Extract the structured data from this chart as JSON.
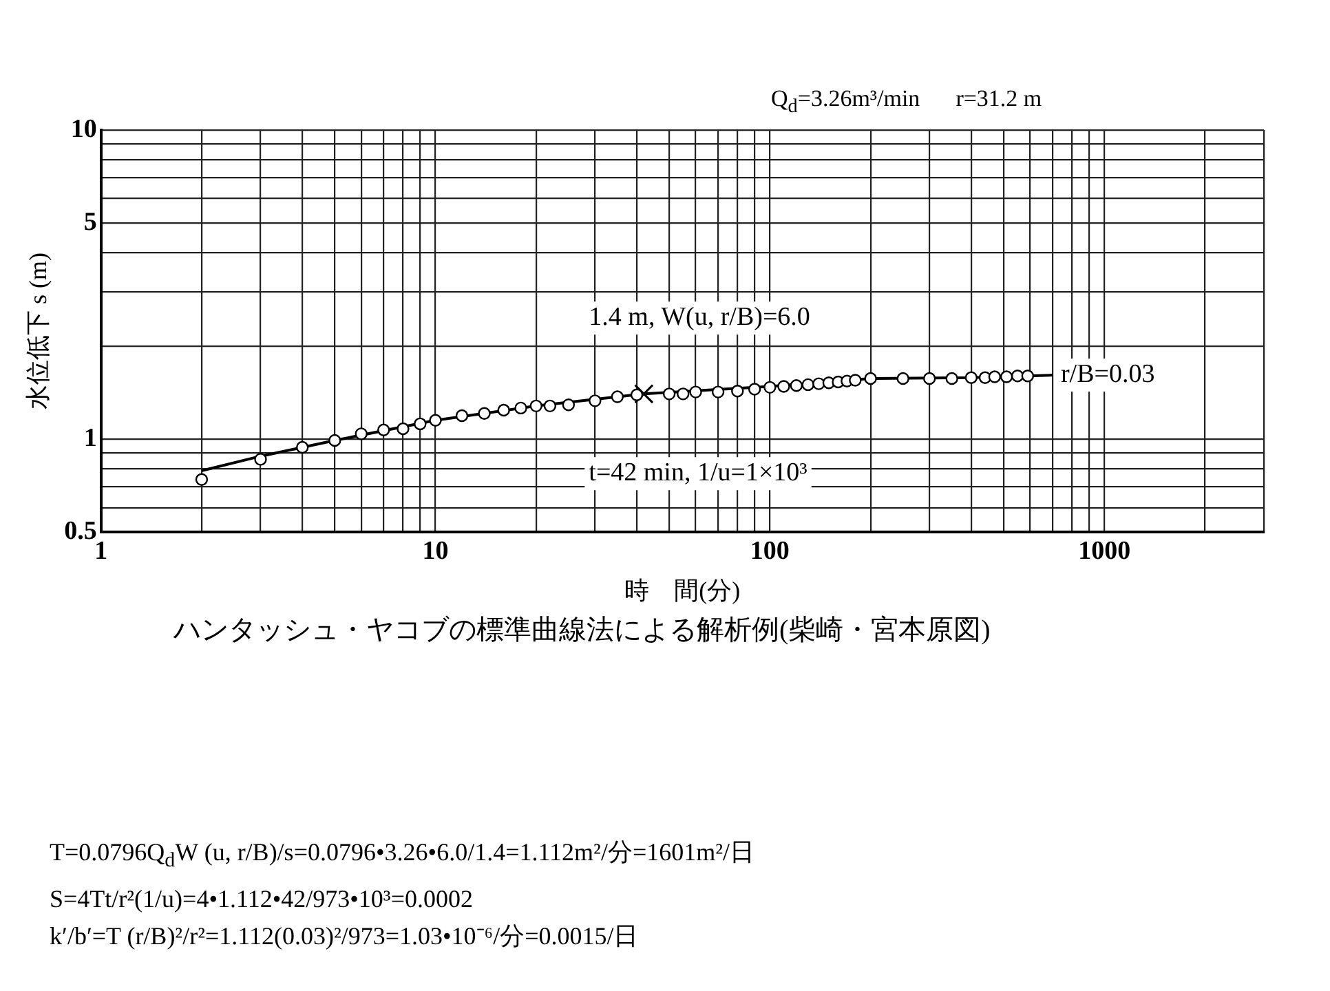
{
  "chart_data": {
    "type": "scatter",
    "xlabel": "時　間(分)",
    "ylabel": "水位低下 s (m)",
    "log": "xy",
    "grid": true,
    "legend": false,
    "marker": "circle",
    "xlim": [
      1,
      3000
    ],
    "ylim": [
      0.5,
      10
    ],
    "xticks": [
      1,
      {
        "value": 2,
        "label": null
      },
      {
        "value": 3,
        "label": null
      },
      {
        "value": 4,
        "label": null
      },
      {
        "value": 5,
        "label": null
      },
      {
        "value": 6,
        "label": null
      },
      {
        "value": 7,
        "label": null
      },
      {
        "value": 8,
        "label": null
      },
      {
        "value": 9,
        "label": null
      },
      10,
      {
        "value": 20,
        "label": null
      },
      {
        "value": 30,
        "label": null
      },
      {
        "value": 40,
        "label": null
      },
      {
        "value": 50,
        "label": null
      },
      {
        "value": 60,
        "label": null
      },
      {
        "value": 70,
        "label": null
      },
      {
        "value": 80,
        "label": null
      },
      {
        "value": 90,
        "label": null
      },
      100,
      {
        "value": 200,
        "label": null
      },
      {
        "value": 300,
        "label": null
      },
      {
        "value": 400,
        "label": null
      },
      {
        "value": 500,
        "label": null
      },
      {
        "value": 600,
        "label": null
      },
      {
        "value": 700,
        "label": null
      },
      {
        "value": 800,
        "label": null
      },
      {
        "value": 900,
        "label": null
      },
      1000,
      {
        "value": 2000,
        "label": null
      },
      {
        "value": 3000,
        "label": null
      }
    ],
    "yticks": [
      0.5,
      {
        "value": 0.6,
        "label": null
      },
      {
        "value": 0.7,
        "label": null
      },
      {
        "value": 0.8,
        "label": null
      },
      {
        "value": 0.9,
        "label": null
      },
      1,
      {
        "value": 2,
        "label": null
      },
      {
        "value": 3,
        "label": null
      },
      {
        "value": 4,
        "label": null
      },
      5,
      {
        "value": 6,
        "label": null
      },
      {
        "value": 7,
        "label": null
      },
      {
        "value": 8,
        "label": null
      },
      {
        "value": 9,
        "label": null
      },
      10
    ],
    "series": [
      {
        "type": "line",
        "name": "r/B=0.03",
        "color": "#000000",
        "marker": "none",
        "x": [
          2,
          3,
          5,
          10,
          20,
          42,
          100,
          200,
          400,
          700
        ],
        "values": [
          0.79,
          0.88,
          0.99,
          1.15,
          1.28,
          1.4,
          1.48,
          1.57,
          1.58,
          1.61
        ]
      },
      {
        "color": "#000000",
        "x": [
          2,
          3,
          4,
          5,
          6,
          7,
          8,
          9,
          10,
          12,
          14,
          16,
          18,
          20,
          22,
          25,
          30,
          35,
          40,
          50,
          55,
          60,
          70,
          80,
          90,
          100,
          110,
          120,
          130,
          140,
          150,
          160,
          170,
          180,
          200,
          250,
          300,
          350,
          400,
          440,
          470,
          510,
          550,
          590
        ],
        "values": [
          0.74,
          0.86,
          0.94,
          0.99,
          1.04,
          1.07,
          1.08,
          1.12,
          1.15,
          1.19,
          1.21,
          1.24,
          1.26,
          1.28,
          1.28,
          1.29,
          1.33,
          1.37,
          1.39,
          1.4,
          1.4,
          1.42,
          1.42,
          1.43,
          1.45,
          1.47,
          1.48,
          1.49,
          1.5,
          1.51,
          1.52,
          1.53,
          1.54,
          1.55,
          1.57,
          1.57,
          1.57,
          1.57,
          1.58,
          1.58,
          1.59,
          1.59,
          1.6,
          1.6
        ]
      },
      {
        "color": "#000000",
        "marker": "cross",
        "x": [
          42
        ],
        "values": [
          1.4
        ]
      }
    ],
    "annotations": [
      "Q$_{d}$=3.26m³/min",
      "r=31.2 m",
      {
        "text": "1.4 m, W(u, r/B)=6.0",
        "x": 42,
        "y": 1.4
      },
      {
        "text": "t=42 min, 1/u=1×10³",
        "x": 42,
        "y": 1.4
      },
      "ハンタッシュ・ヤコブの標準曲線法による解析例(柴崎・宮本原図)",
      "T=0.0796Q$_{d}$W (u,  r/B)/s=0.0796•3.26•6.0/1.4=1.112m²/分=1601m²/日",
      "S=4Tt/r²(1/u)=4•1.112•42/973•10³=0.0002",
      "k′/b′=T (r/B)²/r²=1.112(0.03)²/973=1.03•10⁻⁶/分=0.0015/日"
    ]
  }
}
